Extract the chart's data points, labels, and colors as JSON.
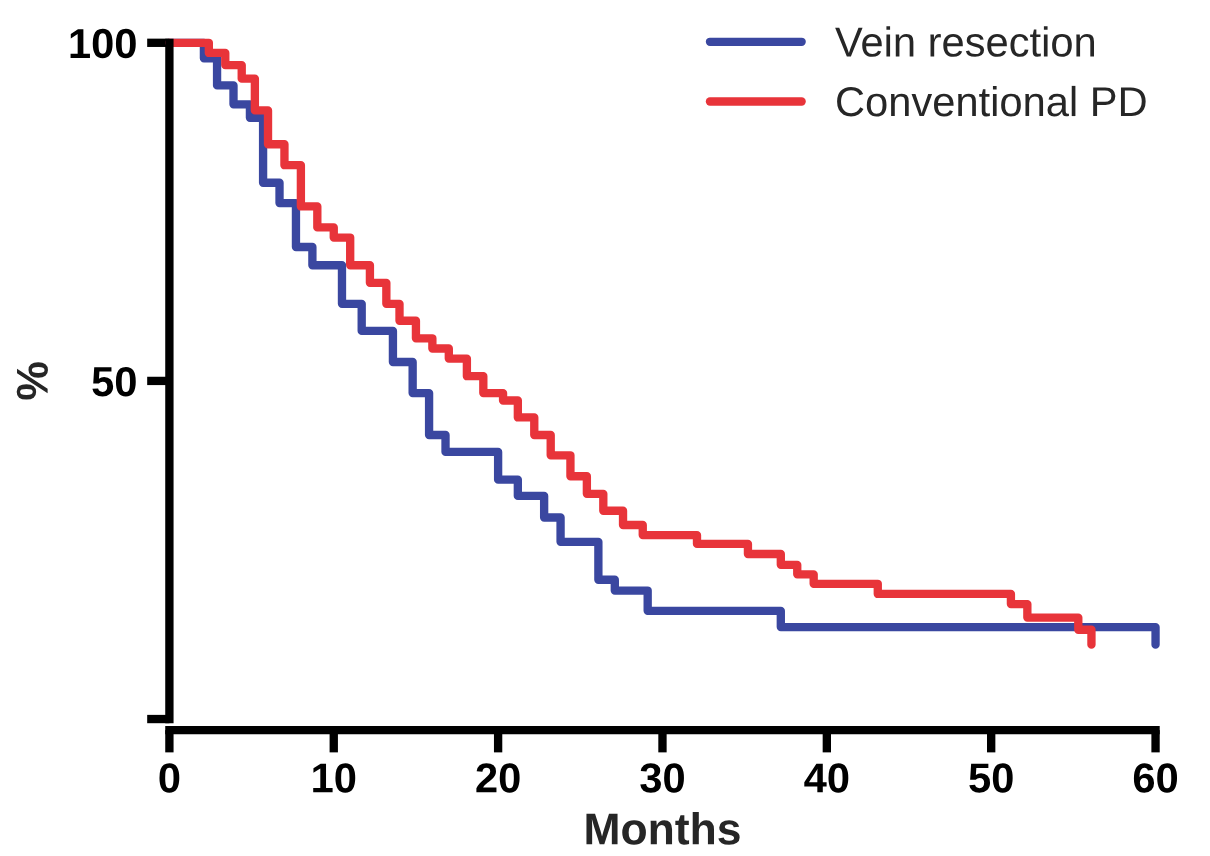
{
  "chart_data": {
    "type": "step",
    "xlabel": "Months",
    "ylabel": "%",
    "xlim": [
      0,
      60
    ],
    "ylim": [
      0,
      100
    ],
    "xticks": [
      0,
      10,
      20,
      30,
      40,
      50,
      60
    ],
    "yticks": [
      {
        "value": 0,
        "label": null
      },
      50,
      100
    ],
    "legend": "top right",
    "grid": false,
    "marker": "none",
    "line_style": "solid",
    "series": [
      {
        "name": "Vein resection",
        "color": "#3a47a0",
        "x": [
          0,
          2.1,
          2.9,
          3.9,
          4.9,
          5.7,
          6.7,
          7.7,
          8.7,
          10.5,
          11.7,
          13.6,
          14.8,
          15.8,
          16.8,
          20,
          21.2,
          22.8,
          23.8,
          26.1,
          27.1,
          29.1,
          37.2,
          60
        ],
        "values": [
          100,
          97.7,
          93.7,
          90.9,
          88.9,
          79.3,
          76.3,
          69.8,
          67.1,
          61.4,
          57.4,
          52.8,
          48.2,
          42,
          39.5,
          35.4,
          33,
          29.8,
          26.2,
          20.6,
          19,
          16,
          13.6,
          11
        ]
      },
      {
        "name": "Conventional PD",
        "color": "#e8343a",
        "x": [
          0,
          2.4,
          3.4,
          4.4,
          5.2,
          6.0,
          7.0,
          8.0,
          9.0,
          10.0,
          11.0,
          12.2,
          13.2,
          14.0,
          15.0,
          16.0,
          17.0,
          18.1,
          19.1,
          20.3,
          21.2,
          22.2,
          23.2,
          24.4,
          25.4,
          26.4,
          27.6,
          28.8,
          32.1,
          35.2,
          37.2,
          38.2,
          39.2,
          43.1,
          51.2,
          52.2,
          55.3,
          56.1
        ],
        "values": [
          100,
          98.5,
          96.7,
          94.7,
          90,
          85,
          81.9,
          75.8,
          72.7,
          71.2,
          67.1,
          64.5,
          61.4,
          58.9,
          56.3,
          54.8,
          53.3,
          50.7,
          48.2,
          47.1,
          44.6,
          42,
          39,
          35.9,
          33.3,
          30.8,
          28.7,
          27.2,
          25.9,
          24.4,
          22.8,
          21.4,
          20,
          18.5,
          17,
          15,
          13.2,
          11
        ]
      }
    ]
  }
}
